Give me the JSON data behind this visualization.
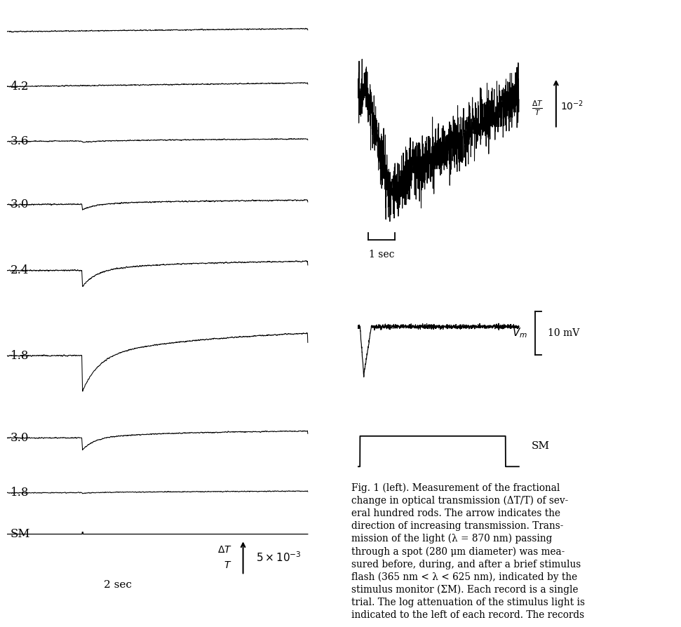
{
  "background_color": "#ffffff",
  "left_labels": [
    "",
    "4.2",
    "3.6",
    "3.0",
    "2.4",
    "1.8",
    "3.0",
    "1.8"
  ],
  "fig_width": 9.81,
  "fig_height": 8.7,
  "dpi": 100,
  "caption": "Fig. 1 (left). Measurement of the fractional change in optical transmission (ΔT/T) of several hundred rods. The arrow indicates the direction of increasing transmission. Transmission of the light (λ = 870 nm) passing through a spot (280 μm diameter) was measured before, during, and after a brief stimulus flash (365 nm < λ < 625 nm), indicated by the stimulus monitor (SM). Each record is a single trial. The log attenuation of the stimulus light is indicated to the left of each record. The records"
}
